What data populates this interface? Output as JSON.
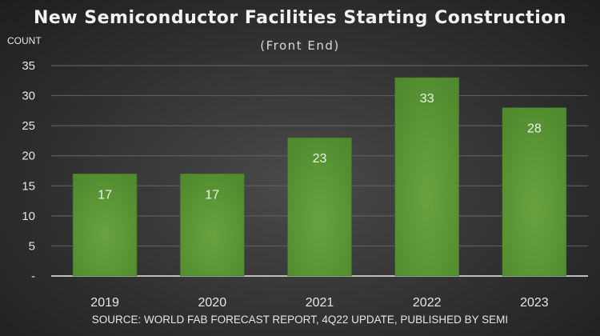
{
  "chart_data": {
    "type": "bar",
    "title": "New Semiconductor Facilities Starting Construction",
    "subtitle": "(Front End)",
    "ylabel": "COUNT",
    "xlabel": "",
    "categories": [
      "2019",
      "2020",
      "2021",
      "2022",
      "2023"
    ],
    "values": [
      17,
      17,
      23,
      33,
      28
    ],
    "data_labels": [
      "17",
      "17",
      "23",
      "33",
      "28"
    ],
    "ylim": [
      0,
      35
    ],
    "yticks": [
      0,
      5,
      10,
      15,
      20,
      25,
      30,
      35
    ],
    "ytick_labels": [
      "-",
      "5",
      "10",
      "15",
      "20",
      "25",
      "30",
      "35"
    ],
    "grid": true,
    "legend": "none",
    "source": "SOURCE:  WORLD FAB FORECAST REPORT, 4Q22 UPDATE,  PUBLISHED  BY SEMI",
    "colors": {
      "bar": "#5a9435",
      "bar_light": "#67a23e",
      "background": "#333333"
    }
  }
}
